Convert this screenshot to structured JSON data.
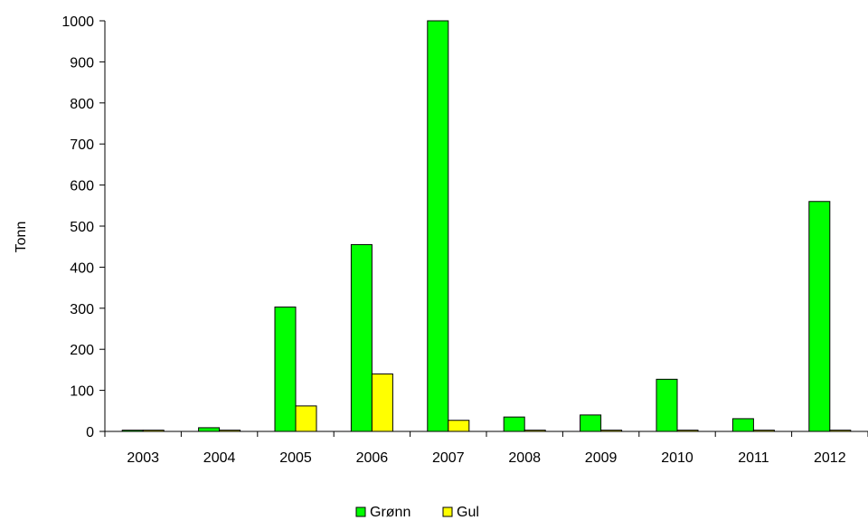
{
  "chart_data": {
    "type": "bar",
    "categories": [
      "2003",
      "2004",
      "2005",
      "2006",
      "2007",
      "2008",
      "2009",
      "2010",
      "2011",
      "2012"
    ],
    "series": [
      {
        "name": "Grønn",
        "color": "#00ff00",
        "values": [
          3,
          9,
          303,
          455,
          1000,
          35,
          40,
          127,
          31,
          560
        ]
      },
      {
        "name": "Gul",
        "color": "#ffff00",
        "values": [
          3,
          3,
          62,
          140,
          27,
          3,
          3,
          3,
          3,
          3
        ]
      }
    ],
    "ylabel": "Tonn",
    "xlabel": "",
    "ylim": [
      0,
      1000
    ],
    "yticks": [
      "0",
      "100",
      "200",
      "300",
      "400",
      "500",
      "600",
      "700",
      "800",
      "900",
      "1000"
    ],
    "legend_position": "bottom-center",
    "grid": false
  }
}
